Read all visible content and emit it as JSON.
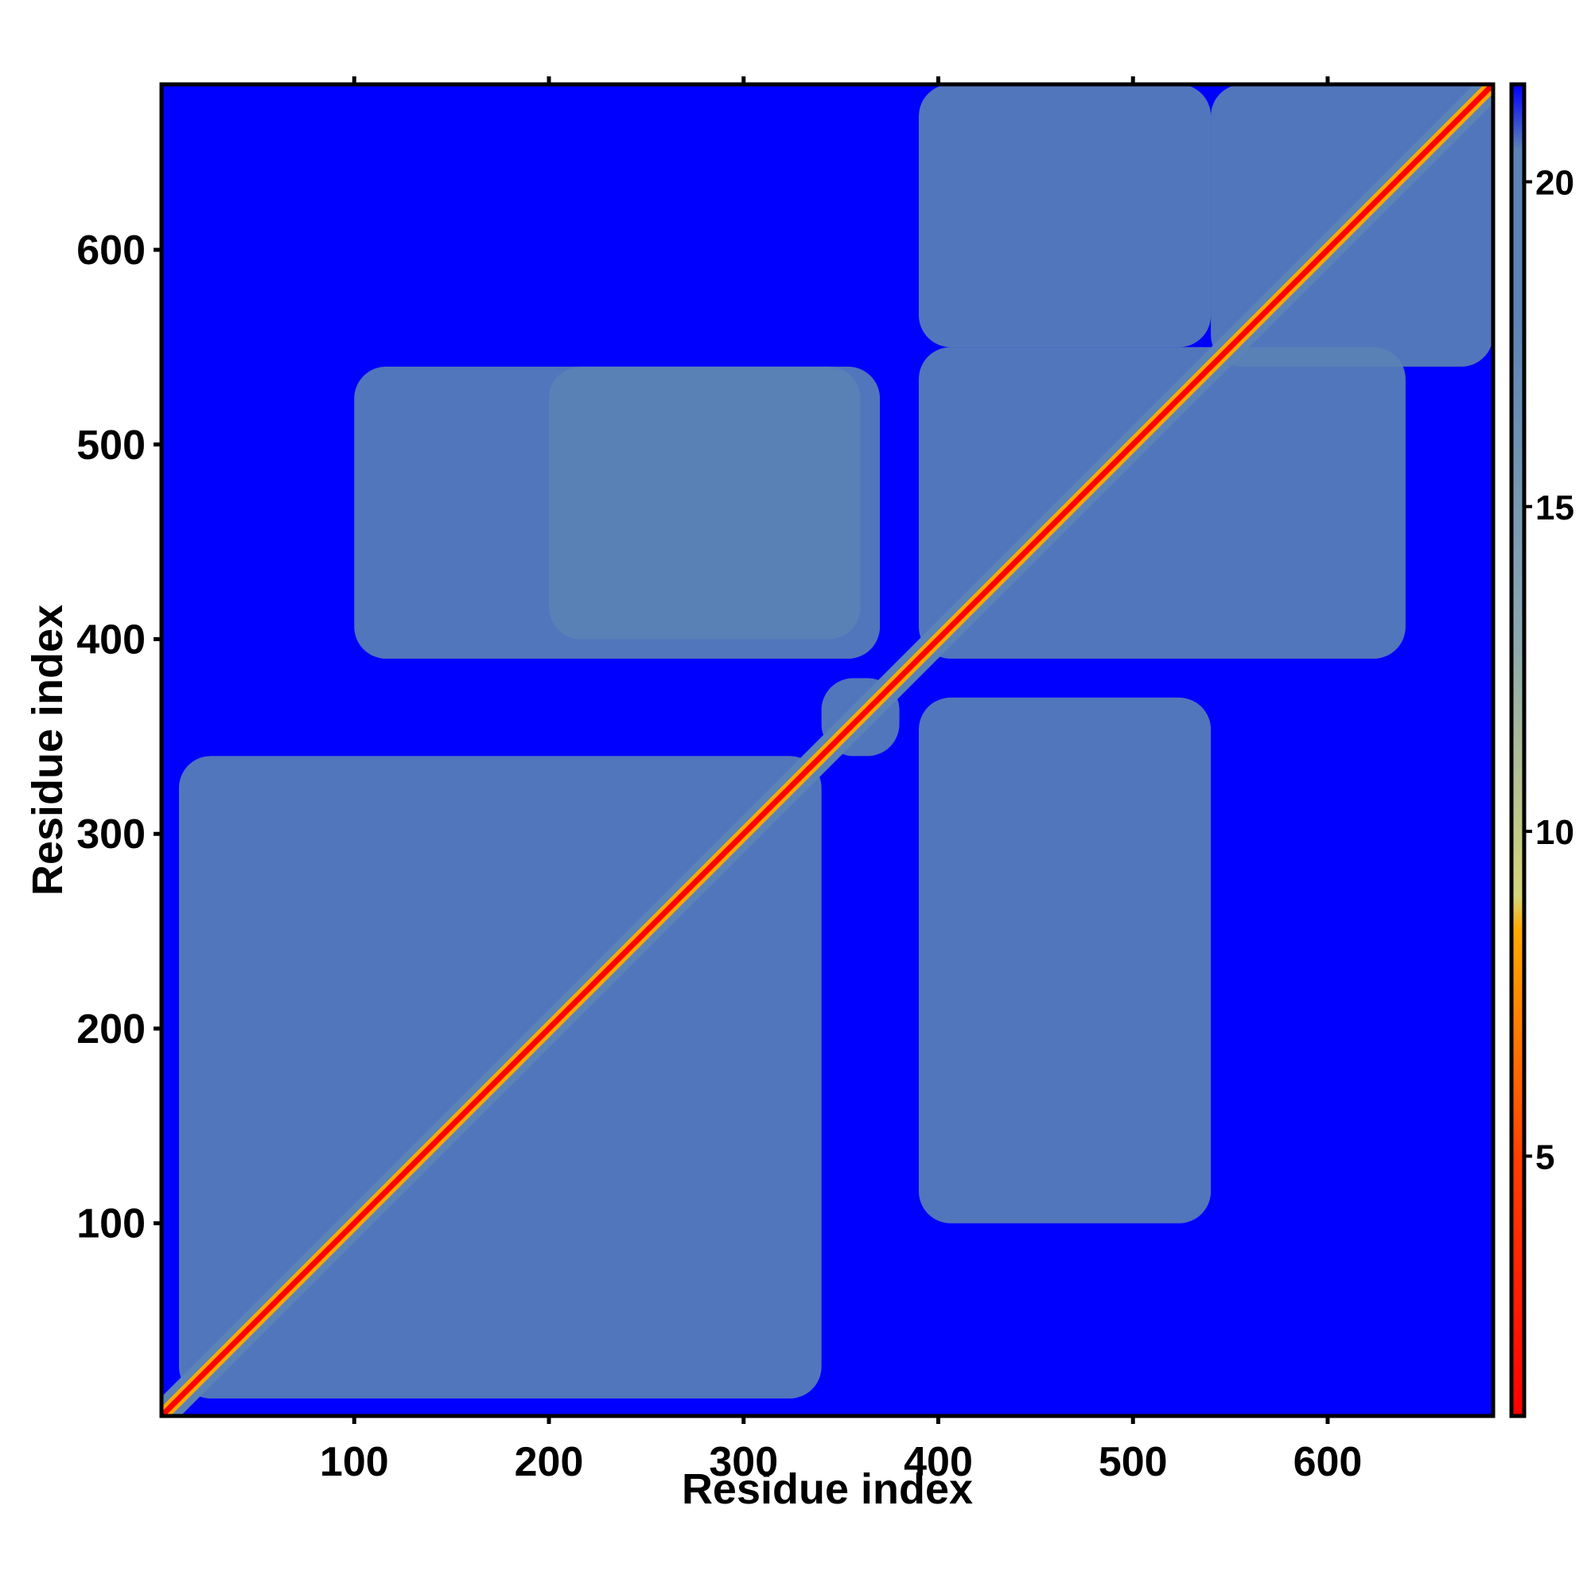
{
  "chart_data": {
    "type": "heatmap",
    "title": "",
    "xlabel": "Residue index",
    "ylabel": "Residue index",
    "xlim": [
      1,
      685
    ],
    "ylim": [
      1,
      685
    ],
    "xticks": [
      100,
      200,
      300,
      400,
      500,
      600
    ],
    "yticks": [
      100,
      200,
      300,
      400,
      500,
      600
    ],
    "grid": false,
    "colorbar": {
      "range": [
        1,
        21.5
      ],
      "ticks": [
        5,
        10,
        15,
        20
      ],
      "stops": [
        {
          "value": 1,
          "color": "#ff0000"
        },
        {
          "value": 5,
          "color": "#ff4000"
        },
        {
          "value": 8.5,
          "color": "#ffaa00"
        },
        {
          "value": 9,
          "color": "#d4d47a"
        },
        {
          "value": 13,
          "color": "#8aa8b0"
        },
        {
          "value": 18,
          "color": "#5b83b5"
        },
        {
          "value": 20.5,
          "color": "#5b83b5"
        },
        {
          "value": 21.5,
          "color": "#0000ff"
        }
      ]
    },
    "background_color": "#0000ff",
    "near_contact_color": "#5b83b5",
    "contact_color": "#ff0000",
    "domains": [
      {
        "x": [
          10,
          340
        ],
        "y": [
          10,
          340
        ]
      },
      {
        "x": [
          340,
          380
        ],
        "y": [
          340,
          380
        ]
      },
      {
        "x": [
          390,
          640
        ],
        "y": [
          390,
          550
        ]
      },
      {
        "x": [
          540,
          685
        ],
        "y": [
          540,
          685
        ]
      },
      {
        "x": [
          390,
          540
        ],
        "y": [
          100,
          370
        ]
      },
      {
        "x": [
          100,
          370
        ],
        "y": [
          390,
          540
        ]
      },
      {
        "x": [
          200,
          360
        ],
        "y": [
          400,
          540
        ]
      },
      {
        "x": [
          390,
          540
        ],
        "y": [
          550,
          685
        ]
      }
    ]
  }
}
